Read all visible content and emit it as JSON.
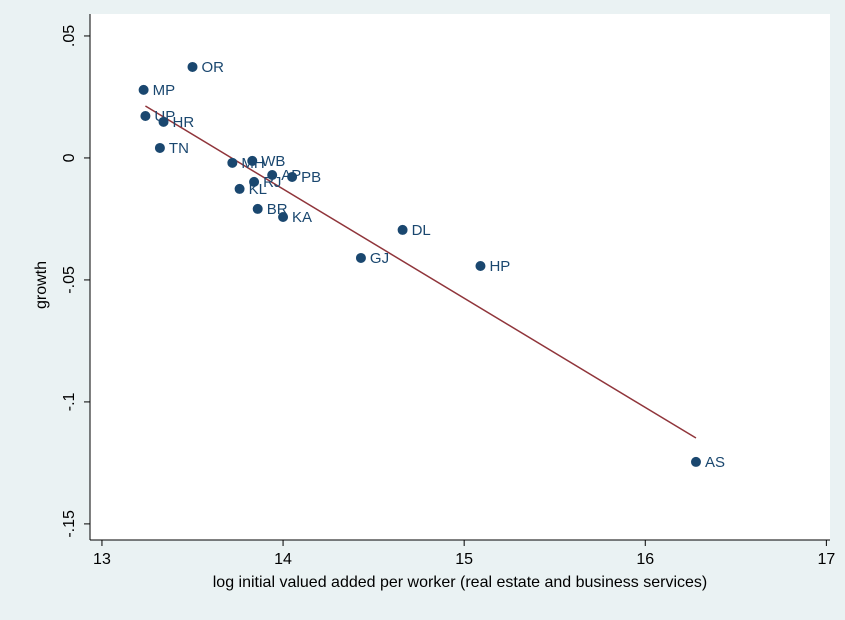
{
  "chart_data": {
    "type": "scatter",
    "xlabel": "log initial valued added per worker (real estate and business services)",
    "ylabel": "growth",
    "x": [
      13.5,
      13.23,
      13.24,
      13.34,
      13.32,
      13.72,
      13.83,
      13.94,
      14.05,
      13.84,
      13.76,
      13.86,
      14.0,
      14.66,
      14.43,
      15.09,
      16.28
    ],
    "values": [
      0.0373,
      0.0279,
      0.0172,
      0.0148,
      0.0041,
      -0.002,
      -0.0012,
      -0.007,
      -0.0078,
      -0.0098,
      -0.0127,
      -0.0209,
      -0.0242,
      -0.0295,
      -0.041,
      -0.0443,
      -0.1246
    ],
    "labels": [
      "OR",
      "MP",
      "UP",
      "HR",
      "TN",
      "MH",
      "WB",
      "AP",
      "PB",
      "RJ",
      "KL",
      "BR",
      "KA",
      "DL",
      "GJ",
      "HP",
      "AS"
    ],
    "color": "#1a476f",
    "fit": {
      "x": [
        13.24,
        16.28
      ],
      "values": [
        0.0213,
        -0.1148
      ],
      "color": "#90353b"
    },
    "xlim": [
      12.934,
      17.02
    ],
    "ylim": [
      -0.1566,
      0.059
    ],
    "xticks": [
      13,
      14,
      15,
      16,
      17
    ],
    "yticks": [
      {
        "value": 0.05,
        "label": ".05"
      },
      0,
      {
        "value": -0.05,
        "label": "-.05"
      },
      {
        "value": -0.1,
        "label": "-.1"
      },
      {
        "value": -0.15,
        "label": "-.15"
      }
    ]
  }
}
